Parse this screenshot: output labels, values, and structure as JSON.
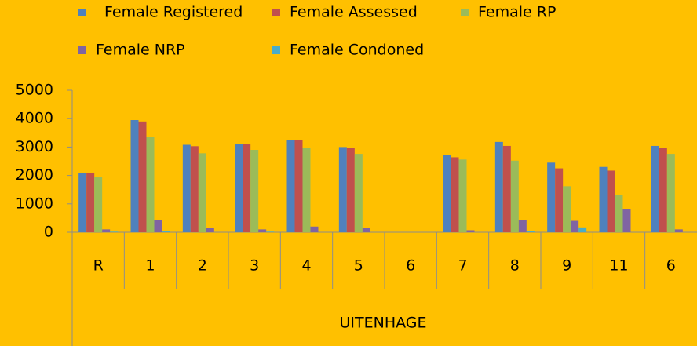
{
  "chart_data": {
    "type": "bar",
    "x_label": "UITENHAGE",
    "categories": [
      "R",
      "1",
      "2",
      "3",
      "4",
      "5",
      "6",
      "7",
      "8",
      "9",
      "11",
      "6"
    ],
    "series": [
      {
        "name": "Female Registered",
        "color": "#4f81bd",
        "values": [
          2100,
          3950,
          3080,
          3120,
          3250,
          3000,
          0,
          2720,
          3180,
          2450,
          2300,
          3040
        ]
      },
      {
        "name": "Female Assessed",
        "color": "#c0504d",
        "values": [
          2100,
          3900,
          3030,
          3110,
          3250,
          2960,
          0,
          2640,
          3040,
          2250,
          2170,
          2960
        ]
      },
      {
        "name": "Female RP",
        "color": "#9bbb59",
        "values": [
          1950,
          3350,
          2780,
          2900,
          2970,
          2760,
          0,
          2560,
          2520,
          1620,
          1320,
          2760
        ]
      },
      {
        "name": "Female NRP",
        "color": "#8064a2",
        "values": [
          100,
          420,
          150,
          100,
          200,
          150,
          0,
          70,
          420,
          400,
          800,
          100
        ]
      },
      {
        "name": "Female Condoned",
        "color": "#4bacc6",
        "values": [
          20,
          30,
          0,
          20,
          0,
          0,
          0,
          0,
          30,
          170,
          0,
          0
        ]
      }
    ],
    "ylim": [
      0,
      5000
    ],
    "yticks": [
      0,
      1000,
      2000,
      3000,
      4000,
      5000
    ],
    "legend": "top",
    "grid": false
  }
}
